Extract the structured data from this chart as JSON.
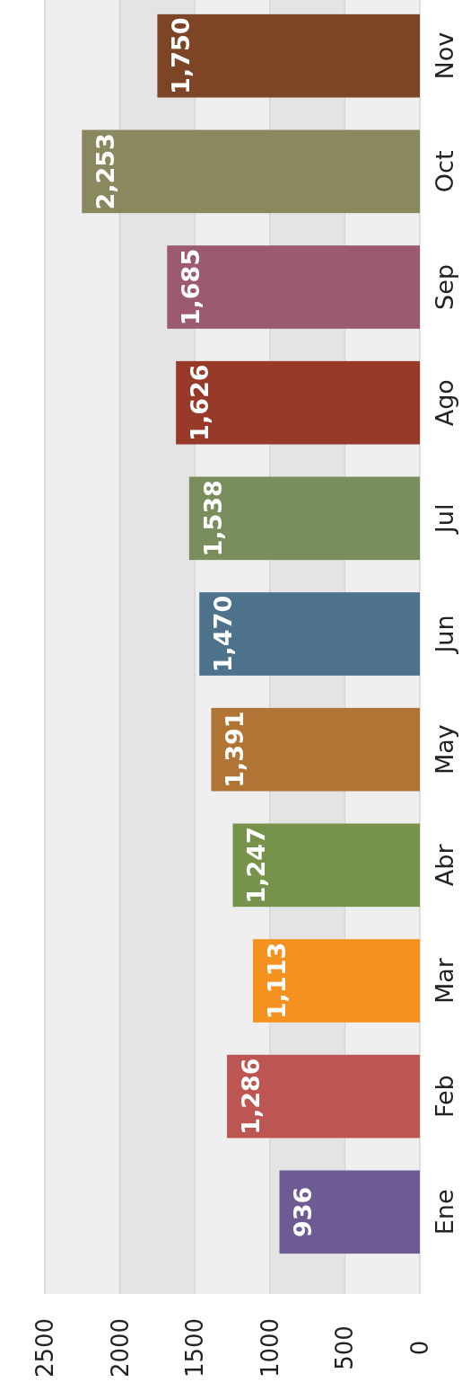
{
  "chart_data": {
    "type": "bar",
    "orientation": "horizontal",
    "categories": [
      "Nov",
      "Oct",
      "Sep",
      "Ago",
      "Jul",
      "Jun",
      "May",
      "Abr",
      "Mar",
      "Feb",
      "Ene"
    ],
    "values": [
      1750,
      2253,
      1685,
      1626,
      1538,
      1470,
      1391,
      1247,
      1113,
      1286,
      936
    ],
    "value_labels": [
      "1,750",
      "2,253",
      "1,685",
      "1,626",
      "1,538",
      "1,470",
      "1,391",
      "1,247",
      "1,113",
      "1,286",
      "936"
    ],
    "colors": [
      "#7d4426",
      "#8a885e",
      "#9b5a71",
      "#983a29",
      "#7a8d5c",
      "#4e718c",
      "#b07535",
      "#75934a",
      "#f5921f",
      "#bd5552",
      "#6e5b93"
    ],
    "xlim": [
      2500,
      0
    ],
    "xticks": [
      0,
      500,
      1000,
      1500,
      2000,
      2500
    ],
    "grid": true
  }
}
